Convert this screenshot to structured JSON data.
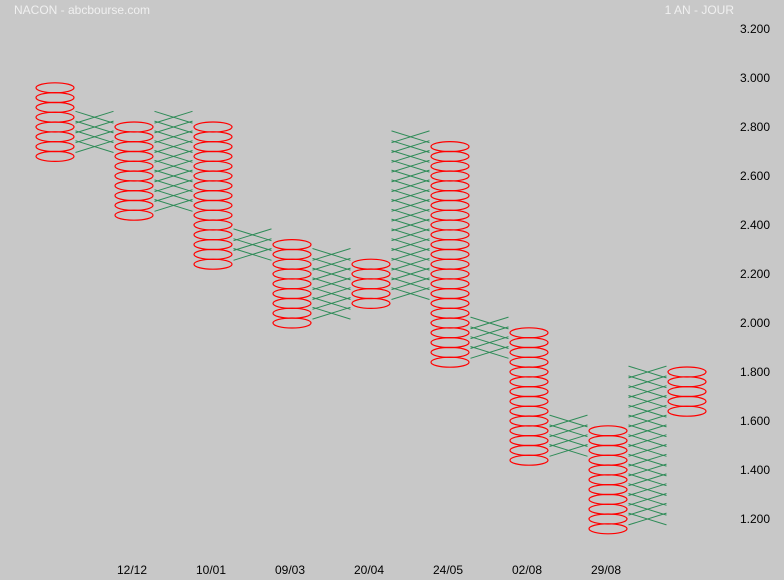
{
  "header": {
    "title": "NACON - abcbourse.com",
    "period": "1 AN - JOUR"
  },
  "colors": {
    "background": "#c8c8c8",
    "x_mark": "#2e8b57",
    "o_mark": "#ff0000",
    "text": "#000000",
    "header_text": "#f0f0f0"
  },
  "chart_data": {
    "type": "point-and-figure",
    "title": "",
    "box_size": 0.04,
    "ylim": [
      1.12,
      3.24
    ],
    "y_ticks": [
      "1.200",
      "1.400",
      "1.600",
      "1.800",
      "2.000",
      "2.200",
      "2.400",
      "2.600",
      "2.800",
      "3.000",
      "3.200"
    ],
    "x_labels": [
      {
        "label": "12/12",
        "column": 2
      },
      {
        "label": "10/01",
        "column": 4
      },
      {
        "label": "09/03",
        "column": 6
      },
      {
        "label": "20/04",
        "column": 8
      },
      {
        "label": "24/05",
        "column": 10
      },
      {
        "label": "02/08",
        "column": 12
      },
      {
        "label": "29/08",
        "column": 14
      }
    ],
    "columns": [
      {
        "type": "O",
        "high": 2.96,
        "low": 2.68
      },
      {
        "type": "X",
        "low": 2.72,
        "high": 2.84
      },
      {
        "type": "O",
        "high": 2.8,
        "low": 2.44
      },
      {
        "type": "X",
        "low": 2.48,
        "high": 2.84
      },
      {
        "type": "O",
        "high": 2.8,
        "low": 2.24
      },
      {
        "type": "X",
        "low": 2.28,
        "high": 2.36
      },
      {
        "type": "O",
        "high": 2.32,
        "low": 2.0
      },
      {
        "type": "X",
        "low": 2.04,
        "high": 2.28
      },
      {
        "type": "O",
        "high": 2.24,
        "low": 2.08
      },
      {
        "type": "X",
        "low": 2.12,
        "high": 2.76
      },
      {
        "type": "O",
        "high": 2.72,
        "low": 1.84
      },
      {
        "type": "X",
        "low": 1.88,
        "high": 2.0
      },
      {
        "type": "O",
        "high": 1.96,
        "low": 1.44
      },
      {
        "type": "X",
        "low": 1.48,
        "high": 1.6
      },
      {
        "type": "O",
        "high": 1.56,
        "low": 1.16
      },
      {
        "type": "X",
        "low": 1.2,
        "high": 1.8
      },
      {
        "type": "O",
        "high": 1.8,
        "low": 1.64
      }
    ]
  }
}
